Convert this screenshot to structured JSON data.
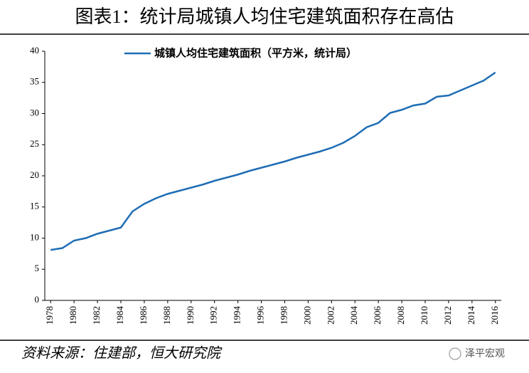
{
  "header": {
    "title": "图表1：统计局城镇人均住宅建筑面积存在高估"
  },
  "chart_data": {
    "type": "line",
    "x": [
      1978,
      1979,
      1980,
      1981,
      1982,
      1983,
      1984,
      1985,
      1986,
      1987,
      1988,
      1989,
      1990,
      1991,
      1992,
      1993,
      1994,
      1995,
      1996,
      1997,
      1998,
      1999,
      2000,
      2001,
      2002,
      2003,
      2004,
      2005,
      2006,
      2007,
      2008,
      2009,
      2010,
      2011,
      2012,
      2013,
      2014,
      2015,
      2016
    ],
    "series": [
      {
        "name": "城镇人均住宅建筑面积（平方米，统计局）",
        "color": "#1f6db5",
        "values": [
          8.1,
          8.4,
          9.6,
          10.0,
          10.7,
          11.2,
          11.7,
          14.3,
          15.5,
          16.4,
          17.1,
          17.6,
          18.1,
          18.6,
          19.2,
          19.7,
          20.2,
          20.8,
          21.3,
          21.8,
          22.3,
          22.9,
          23.4,
          23.9,
          24.5,
          25.3,
          26.4,
          27.8,
          28.5,
          30.1,
          30.6,
          31.3,
          31.6,
          32.7,
          32.9,
          33.7,
          34.5,
          35.3,
          36.6
        ]
      }
    ],
    "xlim": [
      1977.5,
      2016.5
    ],
    "xticks": [
      1978,
      1980,
      1982,
      1984,
      1986,
      1988,
      1990,
      1992,
      1994,
      1996,
      1998,
      2000,
      2002,
      2004,
      2006,
      2008,
      2010,
      2012,
      2014,
      2016
    ],
    "ylim": [
      0,
      40
    ],
    "yticks": [
      0,
      5,
      10,
      15,
      20,
      25,
      30,
      35,
      40
    ],
    "grid": false,
    "legend": "top"
  },
  "footer": {
    "source": "资料来源：住建部，恒大研究院",
    "watermark": "泽平宏观"
  }
}
